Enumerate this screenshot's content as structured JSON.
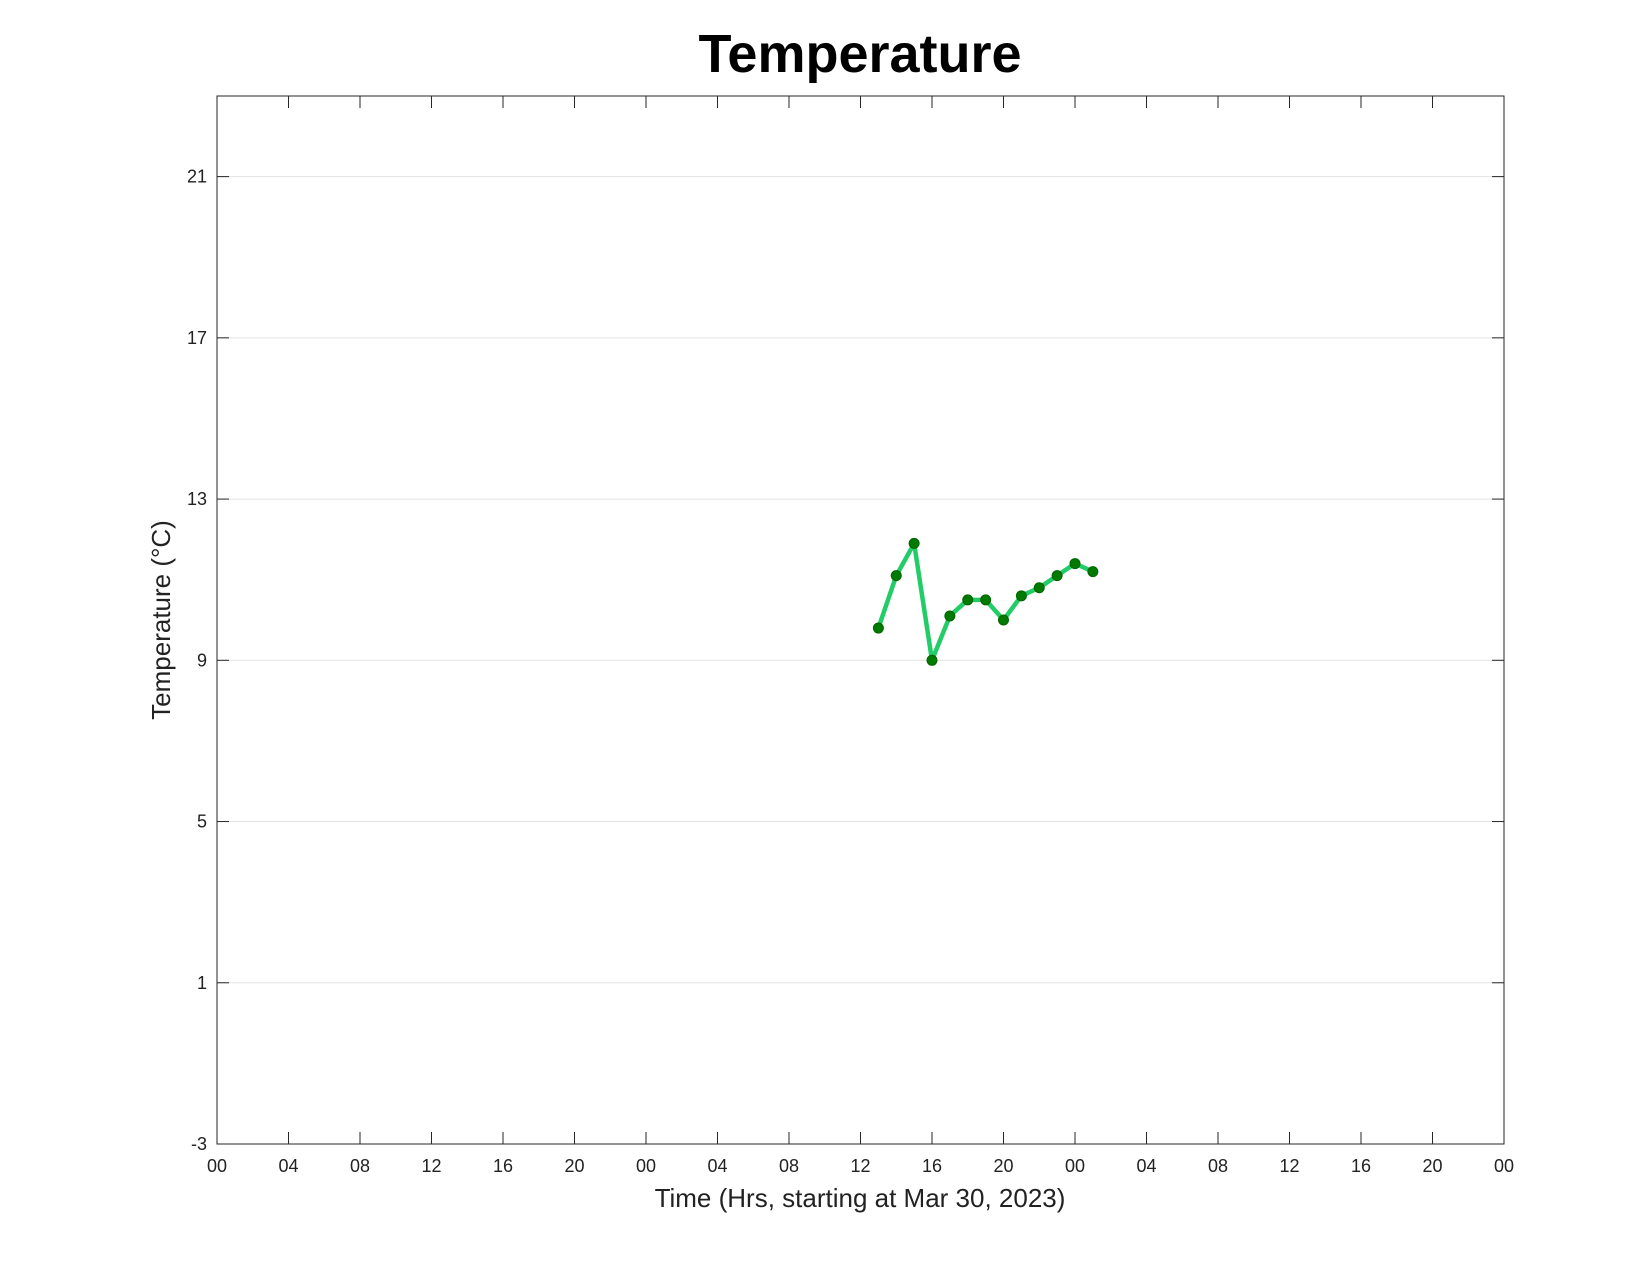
{
  "chart_data": {
    "type": "line",
    "title": "Temperature",
    "xlabel": "Time (Hrs, starting at Mar 30, 2023)",
    "ylabel": "Temperature (°C)",
    "xlim": [
      0,
      72
    ],
    "ylim": [
      -3,
      23
    ],
    "x_unit": "hours since 2023-03-30 00:00",
    "x_ticks": [
      0,
      4,
      8,
      12,
      16,
      20,
      24,
      28,
      32,
      36,
      40,
      44,
      48,
      52,
      56,
      60,
      64,
      68,
      72
    ],
    "x_tick_labels": [
      "00",
      "04",
      "08",
      "12",
      "16",
      "20",
      "00",
      "04",
      "08",
      "12",
      "16",
      "20",
      "00",
      "04",
      "08",
      "12",
      "16",
      "20",
      "00"
    ],
    "y_ticks": [
      -3,
      1,
      5,
      9,
      13,
      17,
      21
    ],
    "y_tick_labels": [
      "-3",
      "1",
      "5",
      "9",
      "13",
      "17",
      "21"
    ],
    "grid": "horizontal",
    "line_color": "#22cc66",
    "marker_color": "#007a00",
    "series": [
      {
        "x": [
          37,
          38,
          39,
          40,
          41,
          42,
          43,
          44,
          45,
          46,
          47,
          48,
          49
        ],
        "values": [
          9.8,
          11.1,
          11.9,
          9.0,
          10.1,
          10.5,
          10.5,
          10.0,
          10.6,
          10.8,
          11.1,
          11.4,
          11.2
        ]
      }
    ]
  }
}
